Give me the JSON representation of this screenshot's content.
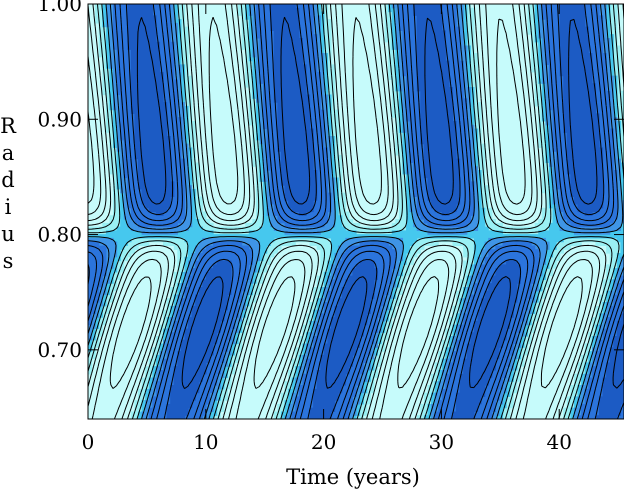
{
  "chart_data": {
    "type": "heatmap",
    "title": "",
    "xlabel": "Time (years)",
    "ylabel": "Radius",
    "xlim": [
      0,
      45.5
    ],
    "ylim": [
      0.64,
      1.0
    ],
    "x_ticks": [
      0,
      10,
      20,
      30,
      40
    ],
    "x_tick_labels": [
      "0",
      "10",
      "20",
      "30",
      "40"
    ],
    "y_ticks": [
      0.7,
      0.8,
      0.9,
      1.0
    ],
    "y_tick_labels": [
      "0.70",
      "0.80",
      "0.90",
      "1.00"
    ],
    "grid": false,
    "period_years": 12.2,
    "contour_levels": 12,
    "colors": {
      "negative_dark": "#1c5bc4",
      "negative": "#2b74dc",
      "negative_light": "#3f95e6",
      "mid": "#46c8ee",
      "positive_light": "#9af0f4",
      "positive": "#c6fbfb",
      "contour_line": "#000000"
    }
  }
}
